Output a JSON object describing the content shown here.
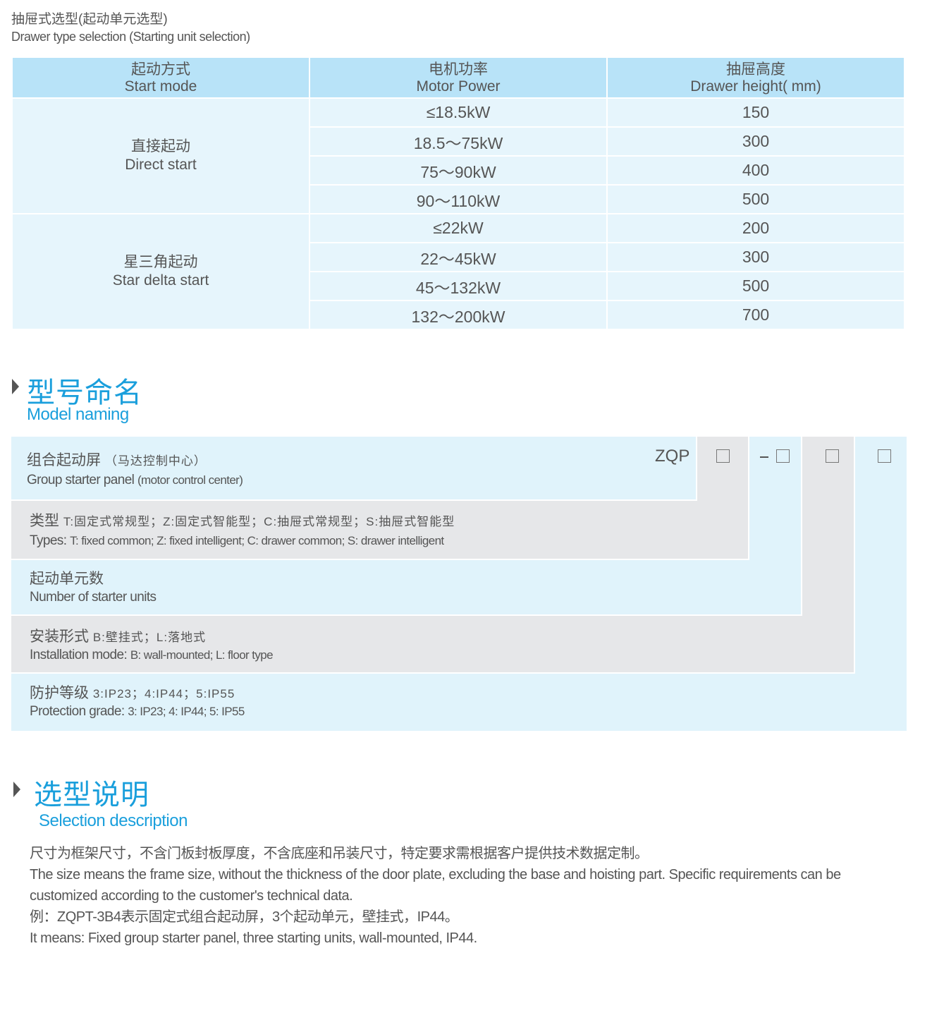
{
  "header": {
    "title_cn": "抽屉式选型(起动单元选型)",
    "title_en": "Drawer type selection (Starting unit selection)"
  },
  "table": {
    "columns": [
      {
        "cn": "起动方式",
        "en": "Start mode"
      },
      {
        "cn": "电机功率",
        "en": "Motor Power"
      },
      {
        "cn": "抽屉高度",
        "en": "Drawer height( mm)"
      }
    ],
    "groups": [
      {
        "cn": "直接起动",
        "en": "Direct start",
        "rows": [
          {
            "power": "≤18.5kW",
            "height": "150"
          },
          {
            "power": "18.5～75kW",
            "height": "300"
          },
          {
            "power": "75～90kW",
            "height": "400"
          },
          {
            "power": "90～110kW",
            "height": "500"
          }
        ]
      },
      {
        "cn": "星三角起动",
        "en": "Star delta start",
        "rows": [
          {
            "power": "≤22kW",
            "height": "200"
          },
          {
            "power": "22～45kW",
            "height": "300"
          },
          {
            "power": "45～132kW",
            "height": "500"
          },
          {
            "power": "132～200kW",
            "height": "700"
          }
        ]
      }
    ]
  },
  "model_naming": {
    "title_cn": "型号命名",
    "title_en": "Model naming",
    "prefix": "ZQP",
    "dash": "−",
    "rows": [
      {
        "cn": "组合起动屏",
        "cn_note": "（马达控制中心）",
        "en": "Group starter panel",
        "en_note": "(motor control center)"
      },
      {
        "cn": "类型",
        "cn_note": "T:固定式常规型；Z:固定式智能型；C:抽屉式常规型；S:抽屉式智能型",
        "en": "Types:",
        "en_note": "T: fixed common; Z: fixed intelligent; C: drawer common; S: drawer intelligent"
      },
      {
        "cn": "起动单元数",
        "cn_note": "",
        "en": "Number of starter units",
        "en_note": ""
      },
      {
        "cn": "安装形式",
        "cn_note": "B:壁挂式；L:落地式",
        "en": "Installation mode:",
        "en_note": "B: wall-mounted; L: floor type"
      },
      {
        "cn": "防护等级",
        "cn_note": "3:IP23；4:IP44；5:IP55",
        "en": "Protection grade:",
        "en_note": "3: IP23; 4: IP44; 5: IP55"
      }
    ]
  },
  "selection": {
    "title_cn": "选型说明",
    "title_en": "Selection description",
    "lines": [
      "尺寸为框架尺寸，不含门板封板厚度，不含底座和吊装尺寸，特定要求需根据客户提供技术数据定制。",
      "The size means the frame size, without the thickness of the door plate, excluding the base and hoisting part. Specific requirements can be",
      "customized according to the customer's technical data.",
      "例：ZQPT-3B4表示固定式组合起动屏，3个起动单元，壁挂式，IP44。",
      "It means: Fixed group starter panel, three starting units, wall-mounted, IP44."
    ]
  },
  "colors": {
    "accent": "#1a9fdc",
    "header_bg": "#b8e3f8",
    "row_bg": "#e6f5fc",
    "gray_bg": "#e6e7e9"
  }
}
